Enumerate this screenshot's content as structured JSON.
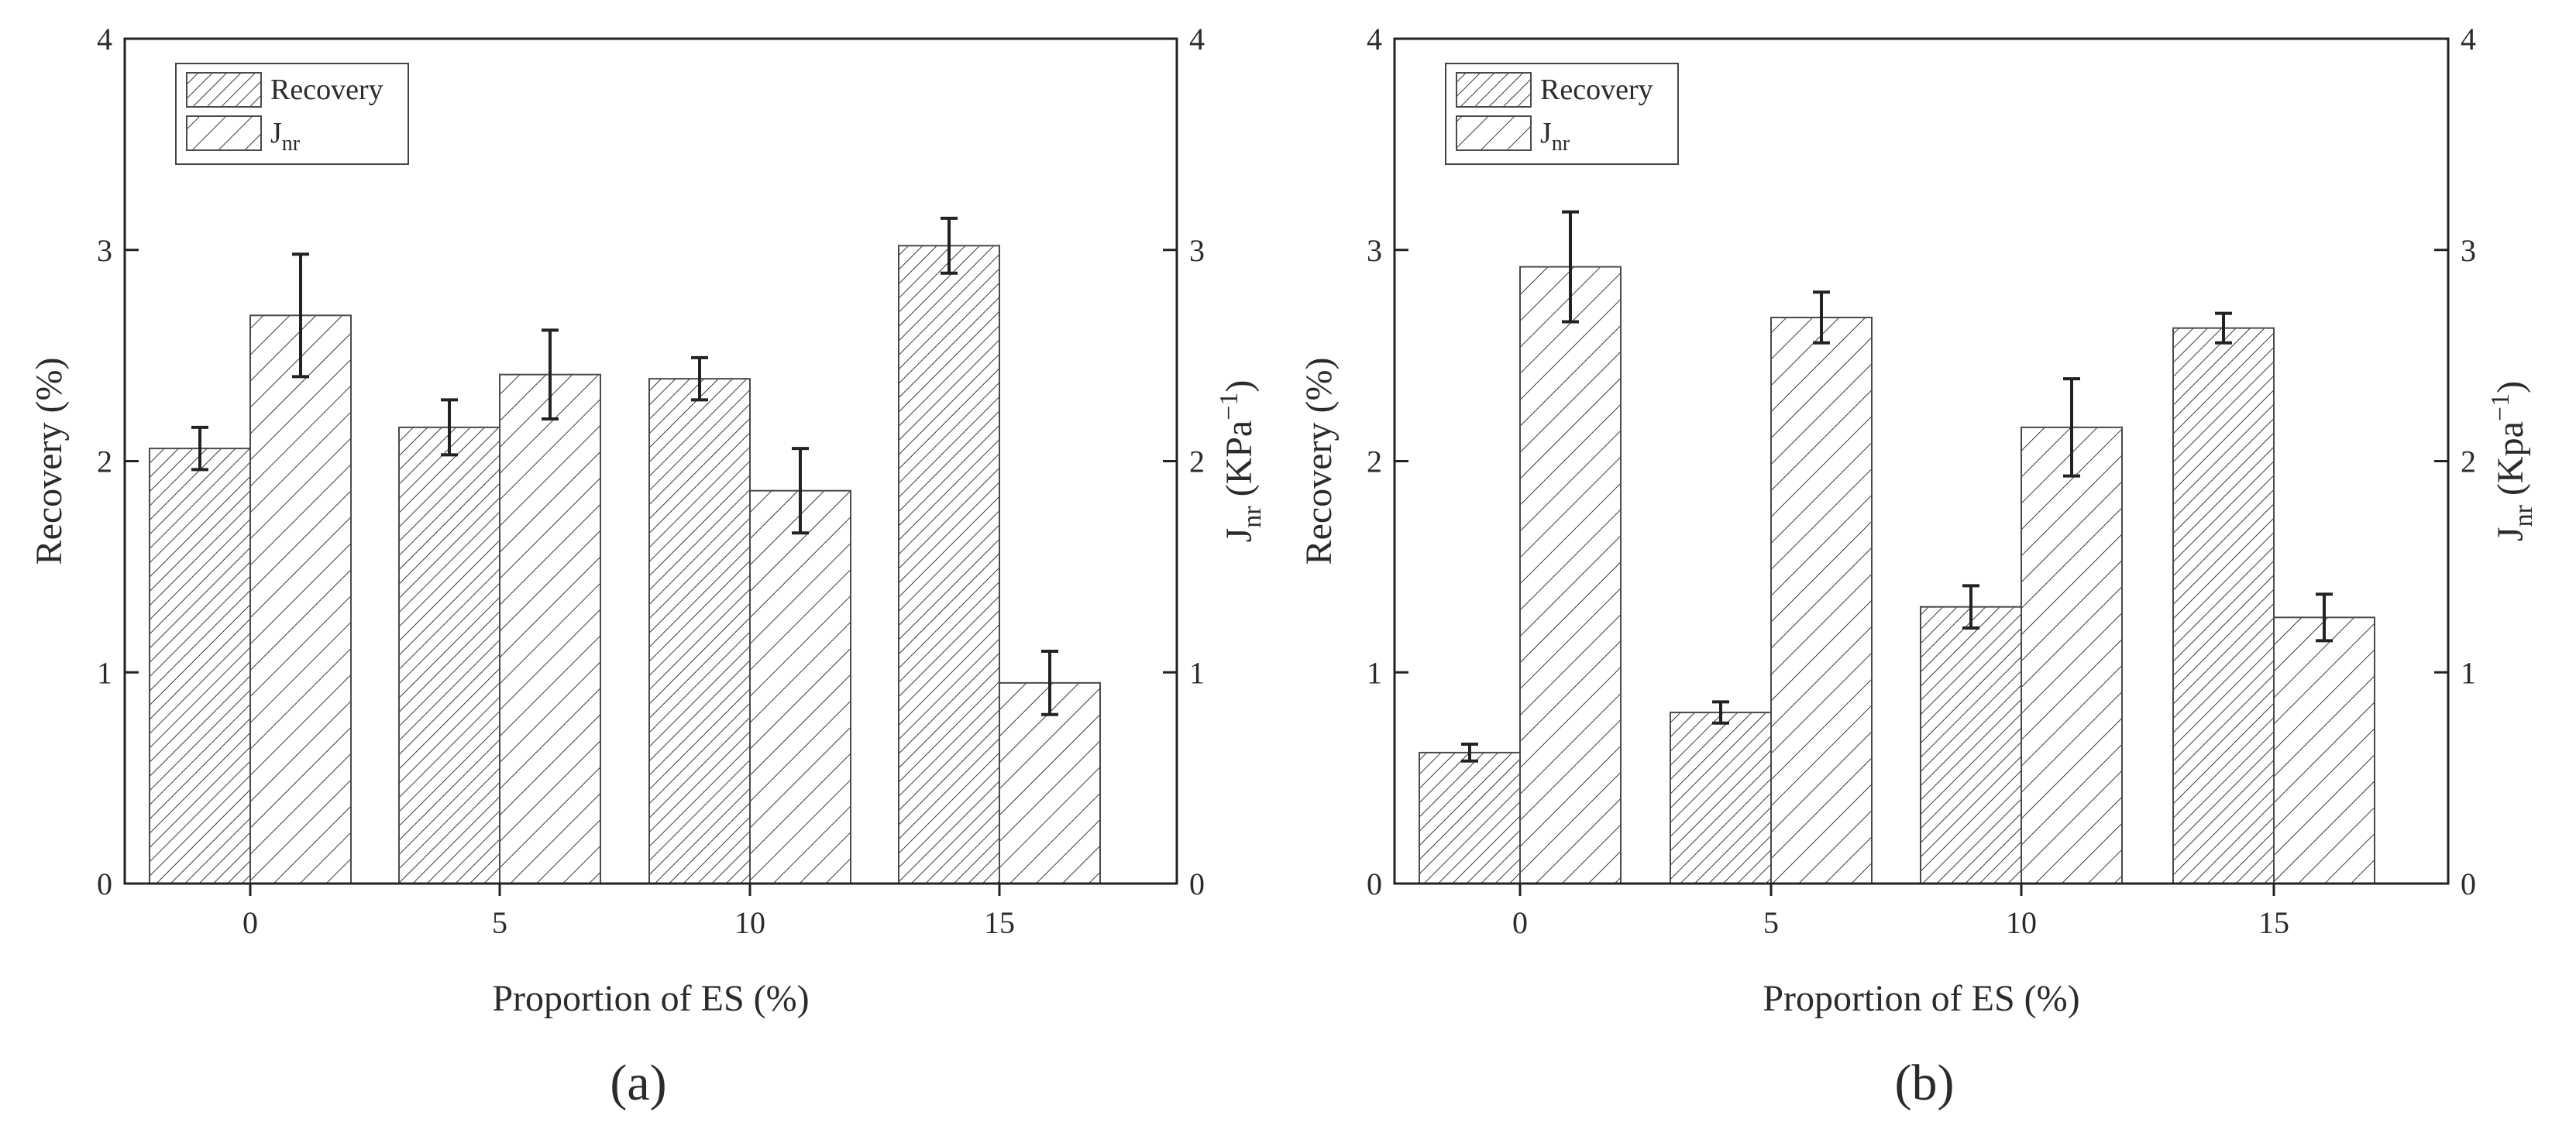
{
  "chart_data": [
    {
      "type": "bar",
      "panel_label": "(a)",
      "xlabel": "Proportion of ES (%)",
      "ylabel_left": "Recovery (%)",
      "ylabel_right": {
        "main": "J",
        "sub": "nr",
        "units": " (KPa",
        "sup": "−1",
        "close": ")"
      },
      "categories": [
        "0",
        "5",
        "10",
        "15"
      ],
      "ylim": [
        0,
        4
      ],
      "yticks": [
        "0",
        "1",
        "2",
        "3",
        "4"
      ],
      "legend": {
        "position": "top-left",
        "entries": [
          {
            "main": "Recovery",
            "sub": ""
          },
          {
            "main": "J",
            "sub": "nr"
          }
        ]
      },
      "series": [
        {
          "name": "Recovery",
          "axis": "left",
          "values": [
            2.06,
            2.16,
            2.39,
            3.02
          ],
          "errors": [
            0.1,
            0.13,
            0.1,
            0.13
          ]
        },
        {
          "name": "Jnr",
          "axis": "right",
          "values": [
            2.69,
            2.41,
            1.86,
            0.95
          ],
          "errors": [
            0.29,
            0.21,
            0.2,
            0.15
          ]
        }
      ]
    },
    {
      "type": "bar",
      "panel_label": "(b)",
      "xlabel": "Proportion of ES (%)",
      "ylabel_left": "Recovery (%)",
      "ylabel_right": {
        "main": "J",
        "sub": "nr",
        "units": " (Kpa",
        "sup": "−1",
        "close": ")"
      },
      "categories": [
        "0",
        "5",
        "10",
        "15"
      ],
      "ylim": [
        0,
        4
      ],
      "yticks": [
        "0",
        "1",
        "2",
        "3",
        "4"
      ],
      "legend": {
        "position": "top-left",
        "entries": [
          {
            "main": "Recovery",
            "sub": ""
          },
          {
            "main": "J",
            "sub": "nr"
          }
        ]
      },
      "series": [
        {
          "name": "Recovery",
          "axis": "left",
          "values": [
            0.62,
            0.81,
            1.31,
            2.63
          ],
          "errors": [
            0.04,
            0.05,
            0.1,
            0.07
          ]
        },
        {
          "name": "Jnr",
          "axis": "right",
          "values": [
            2.92,
            2.68,
            2.16,
            1.26
          ],
          "errors": [
            0.26,
            0.12,
            0.23,
            0.11
          ]
        }
      ]
    }
  ]
}
